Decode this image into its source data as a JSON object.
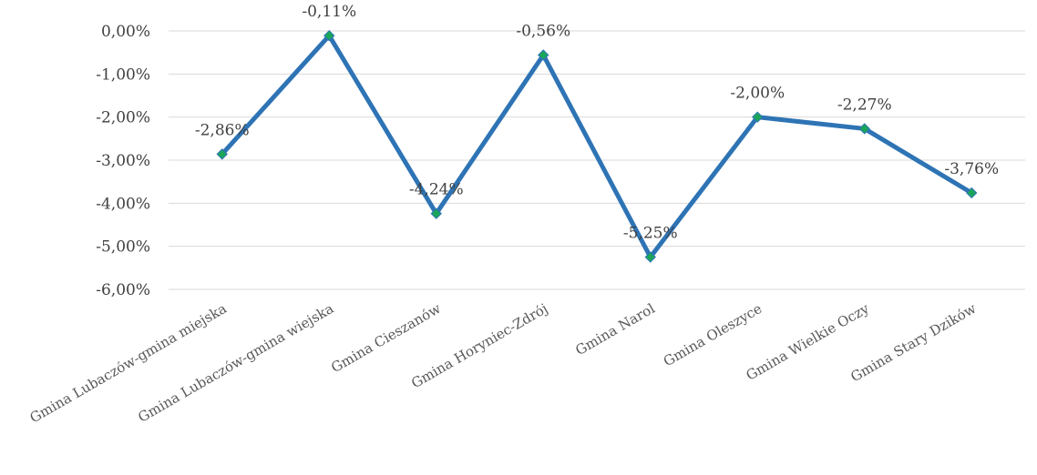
{
  "chart_data": {
    "type": "line",
    "categories": [
      "Gmina Lubaczów-gmina miejska",
      "Gmina Lubaczów-gmina wiejska",
      "Gmina Cieszanów",
      "Gmina Horyniec-Zdrój",
      "Gmina Narol",
      "Gmina Oleszyce",
      "Gmina Wielkie Oczy",
      "Gmina Stary Dzików"
    ],
    "series": [
      {
        "values": [
          -2.86,
          -0.11,
          -4.24,
          -0.56,
          -5.25,
          -2.0,
          -2.27,
          -3.76
        ],
        "data_labels": [
          "-2,86%",
          "-0,11%",
          "-4,24%",
          "-0,56%",
          "-5,25%",
          "-2,00%",
          "-2,27%",
          "-3,76%"
        ]
      }
    ],
    "title": "",
    "xlabel": "",
    "ylabel": "",
    "ylim": [
      -6,
      0
    ],
    "yticks": [
      0,
      -1,
      -2,
      -3,
      -4,
      -5,
      -6
    ],
    "ytick_labels": [
      "0,00%",
      "-1,00%",
      "-2,00%",
      "-3,00%",
      "-4,00%",
      "-5,00%",
      "-6,00%"
    ],
    "grid": true,
    "legend": "none",
    "colors": {
      "line": "#2e74b5",
      "marker": "#1aa55a",
      "grid": "#d9d9d9"
    }
  }
}
